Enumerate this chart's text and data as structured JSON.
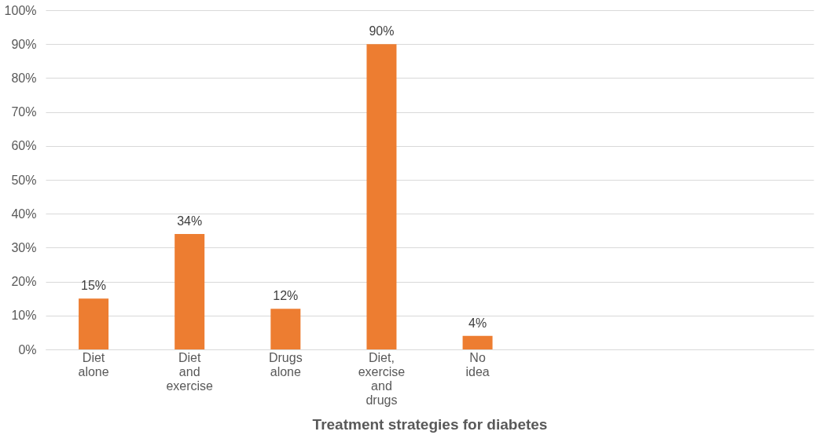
{
  "chart_data": {
    "type": "bar",
    "xlabel": "Treatment strategies for diabetes",
    "categories": [
      "Diet alone",
      "Diet and exercise",
      "Drugs alone",
      "Diet, exercise and drugs",
      "No idea",
      null,
      null,
      null
    ],
    "values": [
      15,
      34,
      12,
      90,
      4,
      null,
      null,
      null
    ],
    "value_labels": [
      "15%",
      "34%",
      "12%",
      "90%",
      "4%",
      null,
      null,
      null
    ],
    "color": "#ed7d31",
    "ylim": [
      0,
      100
    ],
    "yticks": [
      {
        "value": 0,
        "label": "0%"
      },
      {
        "value": 10,
        "label": "10%"
      },
      {
        "value": 20,
        "label": "20%"
      },
      {
        "value": 30,
        "label": "30%"
      },
      {
        "value": 40,
        "label": "40%"
      },
      {
        "value": 50,
        "label": "50%"
      },
      {
        "value": 60,
        "label": "60%"
      },
      {
        "value": 70,
        "label": "70%"
      },
      {
        "value": 80,
        "label": "80%"
      },
      {
        "value": 90,
        "label": "90%"
      },
      {
        "value": 100,
        "label": "100%"
      }
    ],
    "grid": "y"
  }
}
